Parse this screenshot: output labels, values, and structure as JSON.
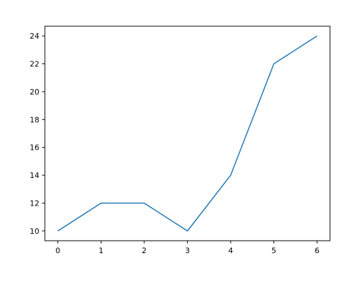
{
  "chart_data": {
    "type": "line",
    "title": "",
    "xlabel": "",
    "ylabel": "",
    "x": [
      0,
      1,
      2,
      3,
      4,
      5,
      6
    ],
    "series": [
      {
        "values": [
          10,
          12,
          12,
          10,
          14,
          22,
          24
        ],
        "color": "#1f77b4"
      }
    ],
    "xlim": [
      -0.3,
      6.3
    ],
    "ylim": [
      9.3,
      24.7
    ],
    "xticks": [
      0,
      1,
      2,
      3,
      4,
      5,
      6
    ],
    "yticks": [
      10,
      12,
      14,
      16,
      18,
      20,
      22,
      24
    ],
    "grid": false,
    "legend": "none"
  }
}
